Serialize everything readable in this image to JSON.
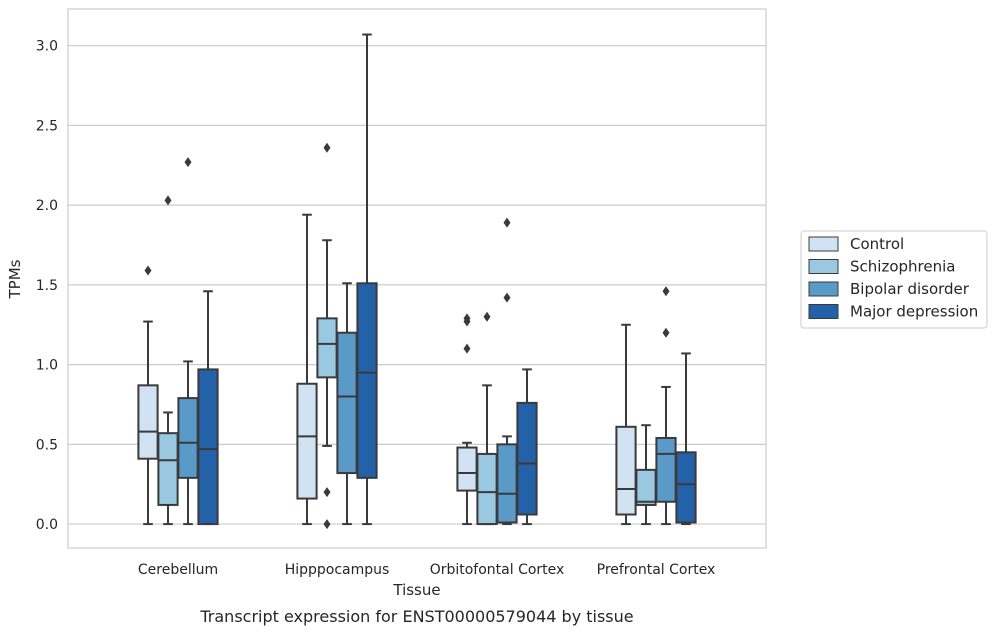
{
  "caption": "Transcript expression for ENST00000579044 by tissue",
  "chart_data": {
    "type": "box",
    "xlabel": "Tissue",
    "ylabel": "TPMs",
    "ylim": [
      -0.15,
      3.23
    ],
    "yticks": [
      "0.0",
      "0.5",
      "1.0",
      "1.5",
      "2.0",
      "2.5",
      "3.0"
    ],
    "categories": [
      "Cerebellum",
      "Hipppocampus",
      "Orbitofontal Cortex",
      "Prefrontal Cortex"
    ],
    "grid": true,
    "legend_position": "right",
    "series": [
      {
        "name": "Control",
        "color": "#d1e2f2",
        "boxes": [
          {
            "whislo": 0.0,
            "q1": 0.41,
            "med": 0.58,
            "q3": 0.87,
            "whishi": 1.27,
            "fliers": [
              1.59
            ]
          },
          {
            "whislo": 0.0,
            "q1": 0.16,
            "med": 0.55,
            "q3": 0.88,
            "whishi": 1.94,
            "fliers": []
          },
          {
            "whislo": 0.0,
            "q1": 0.21,
            "med": 0.32,
            "q3": 0.48,
            "whishi": 0.51,
            "fliers": [
              1.27,
              1.29,
              1.1
            ]
          },
          {
            "whislo": 0.0,
            "q1": 0.06,
            "med": 0.22,
            "q3": 0.61,
            "whishi": 1.25,
            "fliers": []
          }
        ]
      },
      {
        "name": "Schizophrenia",
        "color": "#9ac8e0",
        "boxes": [
          {
            "whislo": 0.0,
            "q1": 0.12,
            "med": 0.4,
            "q3": 0.57,
            "whishi": 0.7,
            "fliers": [
              2.03
            ]
          },
          {
            "whislo": 0.49,
            "q1": 0.92,
            "med": 1.13,
            "q3": 1.29,
            "whishi": 1.78,
            "fliers": [
              2.36,
              0.2,
              0.0
            ]
          },
          {
            "whislo": 0.0,
            "q1": 0.0,
            "med": 0.2,
            "q3": 0.44,
            "whishi": 0.87,
            "fliers": [
              1.3
            ]
          },
          {
            "whislo": 0.0,
            "q1": 0.12,
            "med": 0.14,
            "q3": 0.34,
            "whishi": 0.62,
            "fliers": []
          }
        ]
      },
      {
        "name": "Bipolar disorder",
        "color": "#5a9ac9",
        "boxes": [
          {
            "whislo": 0.0,
            "q1": 0.29,
            "med": 0.51,
            "q3": 0.79,
            "whishi": 1.02,
            "fliers": [
              2.27
            ]
          },
          {
            "whislo": 0.0,
            "q1": 0.32,
            "med": 0.8,
            "q3": 1.2,
            "whishi": 1.51,
            "fliers": []
          },
          {
            "whislo": 0.0,
            "q1": 0.01,
            "med": 0.19,
            "q3": 0.5,
            "whishi": 0.55,
            "fliers": [
              1.42,
              1.89
            ]
          },
          {
            "whislo": 0.0,
            "q1": 0.14,
            "med": 0.44,
            "q3": 0.54,
            "whishi": 0.86,
            "fliers": [
              1.2,
              1.46
            ]
          }
        ]
      },
      {
        "name": "Major depression",
        "color": "#2362a8",
        "boxes": [
          {
            "whislo": 0.0,
            "q1": 0.0,
            "med": 0.47,
            "q3": 0.97,
            "whishi": 1.46,
            "fliers": []
          },
          {
            "whislo": 0.0,
            "q1": 0.29,
            "med": 0.95,
            "q3": 1.51,
            "whishi": 3.07,
            "fliers": []
          },
          {
            "whislo": 0.0,
            "q1": 0.06,
            "med": 0.38,
            "q3": 0.76,
            "whishi": 0.97,
            "fliers": []
          },
          {
            "whislo": 0.0,
            "q1": 0.01,
            "med": 0.25,
            "q3": 0.45,
            "whishi": 1.07,
            "fliers": []
          }
        ]
      }
    ]
  }
}
